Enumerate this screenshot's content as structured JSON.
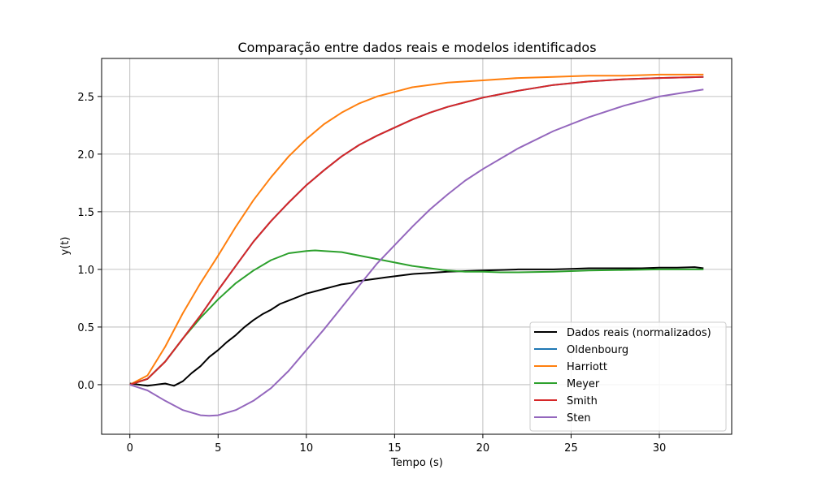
{
  "chart_data": {
    "type": "line",
    "title": "Comparação entre dados reais e modelos identificados",
    "xlabel": "Tempo (s)",
    "ylabel": "y(t)",
    "xlim": [
      -1.6,
      34.1
    ],
    "ylim": [
      -0.43,
      2.83
    ],
    "xticks": [
      0,
      5,
      10,
      15,
      20,
      25,
      30
    ],
    "yticks": [
      0.0,
      0.5,
      1.0,
      1.5,
      2.0,
      2.5
    ],
    "xtick_labels": [
      "0",
      "5",
      "10",
      "15",
      "20",
      "25",
      "30"
    ],
    "ytick_labels": [
      "0.0",
      "0.5",
      "1.0",
      "1.5",
      "2.0",
      "2.5"
    ],
    "grid": true,
    "legend_position": "lower-right",
    "colors": {
      "dados": "#000000",
      "oldenbourg": "#1f77b4",
      "harriott": "#ff7f0e",
      "meyer": "#2ca02c",
      "smith": "#d62728",
      "sten": "#9467bd"
    },
    "series": [
      {
        "name": "Dados reais (normalizados)",
        "color": "#000000",
        "x": [
          0,
          0.5,
          1,
          1.5,
          2,
          2.5,
          3,
          3.5,
          4,
          4.5,
          5,
          5.5,
          6,
          6.5,
          7,
          7.5,
          8,
          8.5,
          9,
          9.5,
          10,
          10.5,
          11,
          11.5,
          12,
          12.5,
          13,
          13.5,
          14,
          14.5,
          15,
          16,
          17,
          18,
          19,
          20,
          21,
          22,
          23,
          24,
          25,
          26,
          27,
          28,
          29,
          30,
          31,
          32,
          32.5
        ],
        "y": [
          0.01,
          0.0,
          -0.01,
          0.0,
          0.01,
          -0.01,
          0.03,
          0.1,
          0.16,
          0.24,
          0.3,
          0.37,
          0.43,
          0.5,
          0.56,
          0.61,
          0.65,
          0.7,
          0.73,
          0.76,
          0.79,
          0.81,
          0.83,
          0.85,
          0.87,
          0.88,
          0.9,
          0.91,
          0.92,
          0.93,
          0.94,
          0.96,
          0.97,
          0.98,
          0.985,
          0.99,
          0.995,
          1.0,
          1.0,
          1.0,
          1.005,
          1.01,
          1.01,
          1.01,
          1.01,
          1.015,
          1.015,
          1.02,
          1.01
        ]
      },
      {
        "name": "Oldenbourg",
        "color": "#1f77b4",
        "x": [
          0,
          1,
          2,
          3,
          4,
          5,
          6,
          7,
          8,
          9,
          10,
          11,
          12,
          13,
          14,
          15,
          16,
          17,
          18,
          19,
          20,
          22,
          24,
          26,
          28,
          30,
          32.5
        ],
        "y": [
          0.0,
          0.05,
          0.2,
          0.4,
          0.6,
          0.82,
          1.03,
          1.24,
          1.42,
          1.58,
          1.73,
          1.86,
          1.98,
          2.08,
          2.16,
          2.23,
          2.3,
          2.36,
          2.41,
          2.45,
          2.49,
          2.55,
          2.6,
          2.63,
          2.65,
          2.66,
          2.67
        ]
      },
      {
        "name": "Harriott",
        "color": "#ff7f0e",
        "x": [
          0,
          1,
          2,
          3,
          4,
          5,
          6,
          7,
          8,
          9,
          10,
          11,
          12,
          13,
          14,
          15,
          16,
          18,
          20,
          22,
          24,
          26,
          28,
          30,
          32.5
        ],
        "y": [
          0.0,
          0.08,
          0.33,
          0.62,
          0.88,
          1.12,
          1.37,
          1.6,
          1.8,
          1.98,
          2.13,
          2.26,
          2.36,
          2.44,
          2.5,
          2.54,
          2.58,
          2.62,
          2.64,
          2.66,
          2.67,
          2.68,
          2.68,
          2.69,
          2.69
        ]
      },
      {
        "name": "Meyer",
        "color": "#2ca02c",
        "x": [
          0,
          1,
          2,
          3,
          4,
          5,
          6,
          7,
          8,
          9,
          10,
          10.5,
          11,
          12,
          13,
          14,
          15,
          16,
          17,
          18,
          19,
          20,
          21,
          22,
          24,
          26,
          28,
          30,
          32.5
        ],
        "y": [
          0.0,
          0.05,
          0.2,
          0.4,
          0.58,
          0.74,
          0.88,
          0.99,
          1.08,
          1.14,
          1.16,
          1.165,
          1.16,
          1.15,
          1.12,
          1.09,
          1.06,
          1.03,
          1.01,
          0.99,
          0.98,
          0.98,
          0.975,
          0.975,
          0.98,
          0.99,
          0.995,
          1.0,
          1.0
        ]
      },
      {
        "name": "Smith",
        "color": "#d62728",
        "x": [
          0,
          1,
          2,
          3,
          4,
          5,
          6,
          7,
          8,
          9,
          10,
          11,
          12,
          13,
          14,
          15,
          16,
          17,
          18,
          19,
          20,
          22,
          24,
          26,
          28,
          30,
          32.5
        ],
        "y": [
          0.0,
          0.05,
          0.2,
          0.4,
          0.6,
          0.82,
          1.03,
          1.24,
          1.42,
          1.58,
          1.73,
          1.86,
          1.98,
          2.08,
          2.16,
          2.23,
          2.3,
          2.36,
          2.41,
          2.45,
          2.49,
          2.55,
          2.6,
          2.63,
          2.65,
          2.66,
          2.67
        ]
      },
      {
        "name": "Sten",
        "color": "#9467bd",
        "x": [
          0,
          1,
          2,
          3,
          4,
          4.5,
          5,
          6,
          7,
          8,
          9,
          10,
          11,
          12,
          13,
          14,
          15,
          16,
          17,
          18,
          19,
          20,
          22,
          24,
          26,
          28,
          30,
          32.5
        ],
        "y": [
          0.0,
          -0.05,
          -0.14,
          -0.22,
          -0.265,
          -0.27,
          -0.265,
          -0.22,
          -0.14,
          -0.03,
          0.12,
          0.3,
          0.48,
          0.67,
          0.86,
          1.05,
          1.21,
          1.37,
          1.52,
          1.65,
          1.77,
          1.87,
          2.05,
          2.2,
          2.32,
          2.42,
          2.5,
          2.56
        ]
      }
    ]
  }
}
